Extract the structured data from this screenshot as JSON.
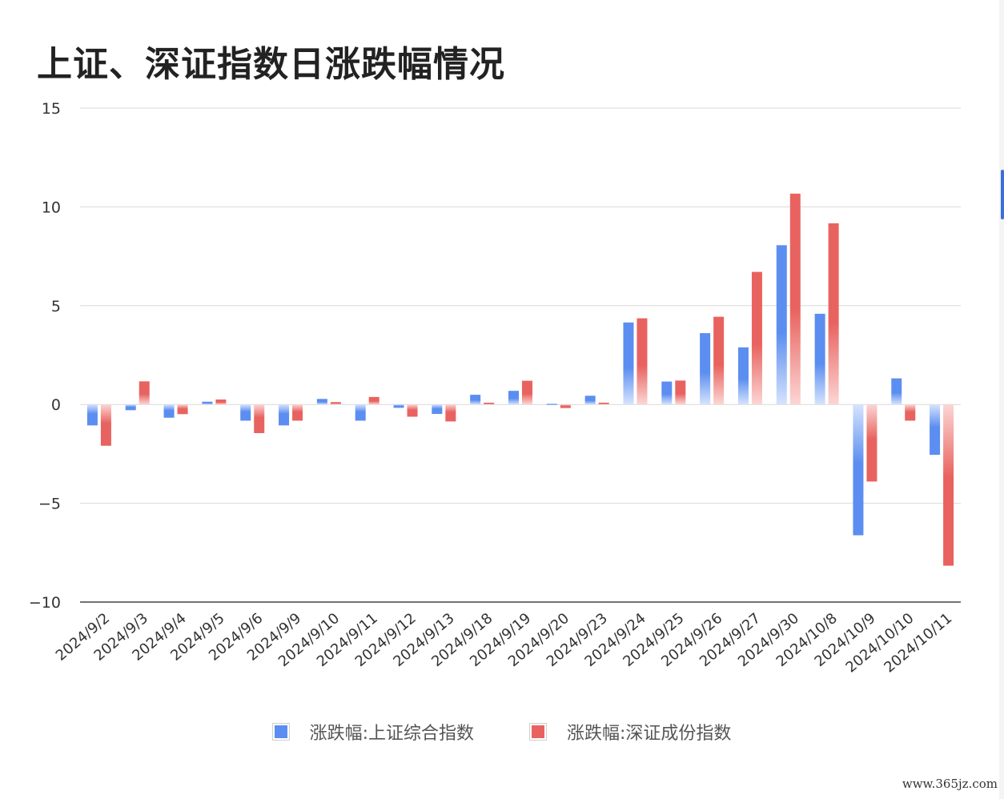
{
  "chart_data": {
    "type": "bar",
    "title": "上证、深证指数日涨跌幅情况",
    "categories": [
      "2024/9/2",
      "2024/9/3",
      "2024/9/4",
      "2024/9/5",
      "2024/9/6",
      "2024/9/9",
      "2024/9/10",
      "2024/9/11",
      "2024/9/12",
      "2024/9/13",
      "2024/9/18",
      "2024/9/19",
      "2024/9/20",
      "2024/9/23",
      "2024/9/24",
      "2024/9/25",
      "2024/9/26",
      "2024/9/27",
      "2024/9/30",
      "2024/10/8",
      "2024/10/9",
      "2024/10/10",
      "2024/10/11"
    ],
    "series": [
      {
        "name": "涨跌幅:上证综合指数",
        "color": "#5b8ef0",
        "values": [
          -1.06,
          -0.29,
          -0.67,
          0.14,
          -0.82,
          -1.06,
          0.28,
          -0.82,
          -0.17,
          -0.48,
          0.49,
          0.69,
          0.03,
          0.44,
          4.15,
          1.16,
          3.61,
          2.89,
          8.06,
          4.59,
          -6.62,
          1.32,
          -2.55
        ]
      },
      {
        "name": "涨跌幅:深证成份指数",
        "color": "#e8635f",
        "values": [
          -2.09,
          1.17,
          -0.49,
          0.25,
          -1.45,
          -0.82,
          0.12,
          0.38,
          -0.62,
          -0.86,
          0.09,
          1.2,
          -0.18,
          0.09,
          4.36,
          1.21,
          4.44,
          6.71,
          10.67,
          9.17,
          -3.9,
          -0.82,
          -8.16
        ]
      }
    ],
    "y_ticks": [
      "15",
      "10",
      "5",
      "0",
      "−5",
      "−10"
    ],
    "ylim": [
      -10,
      15
    ],
    "grid": true,
    "legend_position": "bottom-center"
  },
  "watermark": "www.365jz.com"
}
